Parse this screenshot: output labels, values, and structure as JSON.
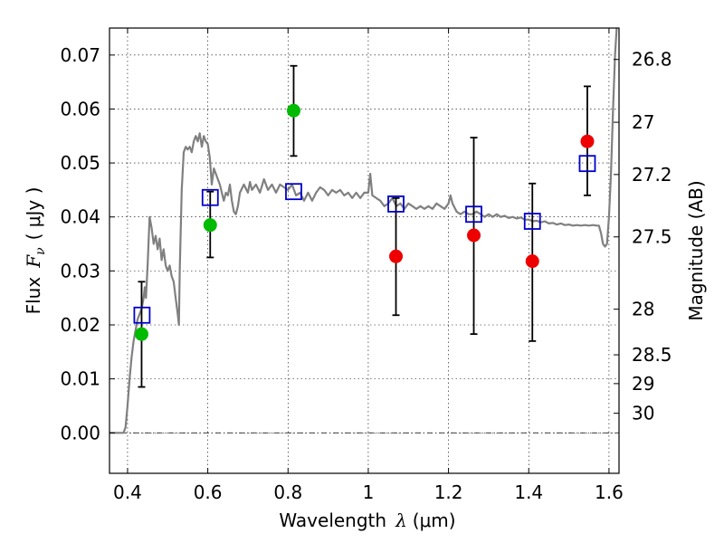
{
  "chart_data": {
    "type": "scatter",
    "xlabel_text": "Wavelength",
    "xlabel_symbol": "λ",
    "xlabel_unit": "(μm)",
    "ylabel_text": "Flux",
    "ylabel_symbol": "F",
    "ylabel_subscript": "ν",
    "ylabel_unit": "( μJy )",
    "y2label": "Magnitude (AB)",
    "xlim": [
      0.355,
      1.625
    ],
    "ylim": [
      -0.0075,
      0.075
    ],
    "grid": true,
    "x_ticks": [
      {
        "value": 0.4,
        "label": "0.4"
      },
      {
        "value": 0.6,
        "label": "0.6"
      },
      {
        "value": 0.8,
        "label": "0.8"
      },
      {
        "value": 1.0,
        "label": "1"
      },
      {
        "value": 1.2,
        "label": "1.2"
      },
      {
        "value": 1.4,
        "label": "1.4"
      },
      {
        "value": 1.6,
        "label": "1.6"
      }
    ],
    "y_ticks": [
      {
        "value": 0.0,
        "label": "0.00"
      },
      {
        "value": 0.01,
        "label": "0.01"
      },
      {
        "value": 0.02,
        "label": "0.02"
      },
      {
        "value": 0.03,
        "label": "0.03"
      },
      {
        "value": 0.04,
        "label": "0.04"
      },
      {
        "value": 0.05,
        "label": "0.05"
      },
      {
        "value": 0.06,
        "label": "0.06"
      },
      {
        "value": 0.07,
        "label": "0.07"
      }
    ],
    "mag_ticks": [
      {
        "value": 26.8,
        "label": "26.8"
      },
      {
        "value": 27.0,
        "label": "27"
      },
      {
        "value": 27.2,
        "label": "27.2"
      },
      {
        "value": 27.5,
        "label": "27.5"
      },
      {
        "value": 28.0,
        "label": "28"
      },
      {
        "value": 28.5,
        "label": "28.5"
      },
      {
        "value": 29.0,
        "label": "29"
      },
      {
        "value": 30.0,
        "label": "30"
      }
    ],
    "measured_points": [
      {
        "x": 0.435,
        "y": 0.0183,
        "yerr_low": 0.0085,
        "yerr_high": 0.028,
        "color": "#00bb00"
      },
      {
        "x": 0.606,
        "y": 0.0385,
        "yerr_low": 0.0325,
        "yerr_high": 0.0447,
        "color": "#00bb00"
      },
      {
        "x": 0.814,
        "y": 0.0597,
        "yerr_low": 0.0513,
        "yerr_high": 0.068,
        "color": "#00bb00"
      },
      {
        "x": 1.069,
        "y": 0.0327,
        "yerr_low": 0.0218,
        "yerr_high": 0.0435,
        "color": "#ee0000"
      },
      {
        "x": 1.263,
        "y": 0.0366,
        "yerr_low": 0.0183,
        "yerr_high": 0.0547,
        "color": "#ee0000"
      },
      {
        "x": 1.409,
        "y": 0.0318,
        "yerr_low": 0.017,
        "yerr_high": 0.0462,
        "color": "#ee0000"
      },
      {
        "x": 1.546,
        "y": 0.054,
        "yerr_low": 0.044,
        "yerr_high": 0.0642,
        "color": "#ee0000"
      }
    ],
    "model_points": [
      {
        "x": 0.436,
        "y": 0.0218
      },
      {
        "x": 0.606,
        "y": 0.0436
      },
      {
        "x": 0.814,
        "y": 0.0447
      },
      {
        "x": 1.069,
        "y": 0.0424
      },
      {
        "x": 1.263,
        "y": 0.0405
      },
      {
        "x": 1.409,
        "y": 0.0392
      },
      {
        "x": 1.546,
        "y": 0.0499
      }
    ],
    "model_spectrum": [
      [
        0.355,
        0.0
      ],
      [
        0.39,
        0.0
      ],
      [
        0.395,
        0.001
      ],
      [
        0.4,
        0.005
      ],
      [
        0.405,
        0.01
      ],
      [
        0.41,
        0.014
      ],
      [
        0.415,
        0.017
      ],
      [
        0.42,
        0.019
      ],
      [
        0.425,
        0.021
      ],
      [
        0.43,
        0.022
      ],
      [
        0.435,
        0.023
      ],
      [
        0.44,
        0.025
      ],
      [
        0.443,
        0.027
      ],
      [
        0.446,
        0.025
      ],
      [
        0.45,
        0.031
      ],
      [
        0.455,
        0.04
      ],
      [
        0.46,
        0.038
      ],
      [
        0.465,
        0.035
      ],
      [
        0.47,
        0.0365
      ],
      [
        0.475,
        0.034
      ],
      [
        0.48,
        0.036
      ],
      [
        0.485,
        0.032
      ],
      [
        0.49,
        0.034
      ],
      [
        0.495,
        0.031
      ],
      [
        0.5,
        0.03
      ],
      [
        0.505,
        0.031
      ],
      [
        0.51,
        0.029
      ],
      [
        0.515,
        0.028
      ],
      [
        0.52,
        0.025
      ],
      [
        0.525,
        0.022
      ],
      [
        0.528,
        0.02
      ],
      [
        0.53,
        0.03
      ],
      [
        0.535,
        0.045
      ],
      [
        0.54,
        0.052
      ],
      [
        0.545,
        0.053
      ],
      [
        0.55,
        0.0525
      ],
      [
        0.555,
        0.053
      ],
      [
        0.56,
        0.052
      ],
      [
        0.565,
        0.054
      ],
      [
        0.57,
        0.055
      ],
      [
        0.575,
        0.054
      ],
      [
        0.58,
        0.0555
      ],
      [
        0.585,
        0.053
      ],
      [
        0.59,
        0.055
      ],
      [
        0.595,
        0.054
      ],
      [
        0.6,
        0.0535
      ],
      [
        0.605,
        0.051
      ],
      [
        0.61,
        0.046
      ],
      [
        0.615,
        0.049
      ],
      [
        0.62,
        0.048
      ],
      [
        0.625,
        0.047
      ],
      [
        0.63,
        0.046
      ],
      [
        0.64,
        0.043
      ],
      [
        0.645,
        0.0445
      ],
      [
        0.65,
        0.044
      ],
      [
        0.655,
        0.046
      ],
      [
        0.66,
        0.043
      ],
      [
        0.665,
        0.041
      ],
      [
        0.67,
        0.0405
      ],
      [
        0.675,
        0.042
      ],
      [
        0.68,
        0.0445
      ],
      [
        0.69,
        0.046
      ],
      [
        0.7,
        0.0445
      ],
      [
        0.705,
        0.0465
      ],
      [
        0.71,
        0.045
      ],
      [
        0.72,
        0.046
      ],
      [
        0.73,
        0.0445
      ],
      [
        0.74,
        0.047
      ],
      [
        0.75,
        0.045
      ],
      [
        0.76,
        0.046
      ],
      [
        0.77,
        0.0445
      ],
      [
        0.78,
        0.046
      ],
      [
        0.79,
        0.0455
      ],
      [
        0.8,
        0.045
      ],
      [
        0.81,
        0.046
      ],
      [
        0.82,
        0.044
      ],
      [
        0.83,
        0.0445
      ],
      [
        0.84,
        0.043
      ],
      [
        0.85,
        0.0445
      ],
      [
        0.86,
        0.043
      ],
      [
        0.87,
        0.0445
      ],
      [
        0.88,
        0.0455
      ],
      [
        0.89,
        0.045
      ],
      [
        0.9,
        0.044
      ],
      [
        0.91,
        0.045
      ],
      [
        0.92,
        0.0445
      ],
      [
        0.93,
        0.045
      ],
      [
        0.94,
        0.044
      ],
      [
        0.95,
        0.0445
      ],
      [
        0.96,
        0.0435
      ],
      [
        0.97,
        0.0445
      ],
      [
        0.98,
        0.0435
      ],
      [
        0.99,
        0.0445
      ],
      [
        1.0,
        0.0445
      ],
      [
        1.005,
        0.048
      ],
      [
        1.01,
        0.044
      ],
      [
        1.02,
        0.0435
      ],
      [
        1.03,
        0.043
      ],
      [
        1.04,
        0.042
      ],
      [
        1.05,
        0.0425
      ],
      [
        1.06,
        0.0435
      ],
      [
        1.07,
        0.042
      ],
      [
        1.08,
        0.0425
      ],
      [
        1.09,
        0.0415
      ],
      [
        1.1,
        0.0425
      ],
      [
        1.11,
        0.042
      ],
      [
        1.12,
        0.0415
      ],
      [
        1.13,
        0.042
      ],
      [
        1.14,
        0.0415
      ],
      [
        1.15,
        0.042
      ],
      [
        1.16,
        0.0415
      ],
      [
        1.17,
        0.0425
      ],
      [
        1.18,
        0.042
      ],
      [
        1.19,
        0.0415
      ],
      [
        1.2,
        0.0425
      ],
      [
        1.205,
        0.044
      ],
      [
        1.21,
        0.0425
      ],
      [
        1.22,
        0.041
      ],
      [
        1.23,
        0.0405
      ],
      [
        1.24,
        0.041
      ],
      [
        1.25,
        0.0405
      ],
      [
        1.26,
        0.0405
      ],
      [
        1.27,
        0.041
      ],
      [
        1.28,
        0.0405
      ],
      [
        1.29,
        0.04
      ],
      [
        1.3,
        0.0405
      ],
      [
        1.31,
        0.04
      ],
      [
        1.32,
        0.0405
      ],
      [
        1.33,
        0.04
      ],
      [
        1.34,
        0.0402
      ],
      [
        1.35,
        0.0398
      ],
      [
        1.36,
        0.04
      ],
      [
        1.37,
        0.0397
      ],
      [
        1.38,
        0.0399
      ],
      [
        1.39,
        0.0395
      ],
      [
        1.4,
        0.0395
      ],
      [
        1.41,
        0.0392
      ],
      [
        1.42,
        0.0393
      ],
      [
        1.43,
        0.039
      ],
      [
        1.44,
        0.0392
      ],
      [
        1.45,
        0.0388
      ],
      [
        1.46,
        0.0389
      ],
      [
        1.47,
        0.0386
      ],
      [
        1.48,
        0.0388
      ],
      [
        1.49,
        0.0385
      ],
      [
        1.5,
        0.0386
      ],
      [
        1.51,
        0.0384
      ],
      [
        1.52,
        0.0385
      ],
      [
        1.53,
        0.0384
      ],
      [
        1.54,
        0.0385
      ],
      [
        1.55,
        0.0384
      ],
      [
        1.56,
        0.0385
      ],
      [
        1.57,
        0.0384
      ],
      [
        1.575,
        0.0384
      ],
      [
        1.58,
        0.037
      ],
      [
        1.585,
        0.035
      ],
      [
        1.59,
        0.0345
      ],
      [
        1.595,
        0.035
      ],
      [
        1.6,
        0.04
      ],
      [
        1.605,
        0.048
      ],
      [
        1.61,
        0.06
      ],
      [
        1.615,
        0.07
      ],
      [
        1.62,
        0.076
      ]
    ]
  }
}
